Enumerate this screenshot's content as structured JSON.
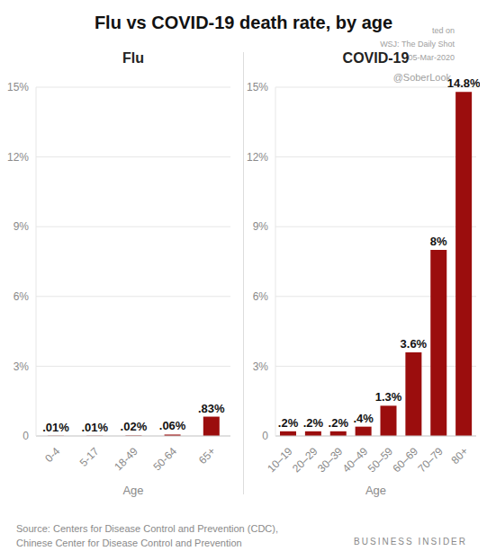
{
  "title": "Flu vs COVID-19 death rate, by age",
  "watermark": [
    "ted on",
    "WSJ: The Daily Shot",
    "05-Mar-2020",
    "@SoberLook"
  ],
  "source": [
    "Source: Centers for Disease Control and Prevention (CDC),",
    "Chinese Center for Disease Control and Prevention"
  ],
  "credit": "BUSINESS INSIDER",
  "chart_data": [
    {
      "type": "bar",
      "title": "Flu",
      "x_label": "Age",
      "categories": [
        "0-4",
        "5-17",
        "18-49",
        "50-64",
        "65+"
      ],
      "values": [
        0.01,
        0.01,
        0.02,
        0.06,
        0.83
      ],
      "value_labels": [
        ".01%",
        ".01%",
        ".02%",
        ".06%",
        ".83%"
      ],
      "color": "#9b0d0d",
      "ylim": [
        0,
        15
      ],
      "yticks": [
        0,
        {
          "value": 3,
          "label": "3%"
        },
        {
          "value": 6,
          "label": "6%"
        },
        {
          "value": 9,
          "label": "9%"
        },
        {
          "value": 12,
          "label": "12%"
        },
        {
          "value": 15,
          "label": "15%"
        }
      ],
      "grid": true,
      "data_labels": true
    },
    {
      "type": "bar",
      "title": "COVID-19",
      "x_label": "Age",
      "categories": [
        "10–19",
        "20–29",
        "30–39",
        "40–49",
        "50–59",
        "60–69",
        "70–79",
        "80+"
      ],
      "values": [
        0.2,
        0.2,
        0.2,
        0.4,
        1.3,
        3.6,
        8,
        14.8
      ],
      "value_labels": [
        ".2%",
        ".2%",
        ".2%",
        ".4%",
        "1.3%",
        "3.6%",
        "8%",
        "14.8%"
      ],
      "color": "#9b0d0d",
      "ylim": [
        0,
        15
      ],
      "yticks": [
        0,
        {
          "value": 3,
          "label": "3%"
        },
        {
          "value": 6,
          "label": "6%"
        },
        {
          "value": 9,
          "label": "9%"
        },
        {
          "value": 12,
          "label": "12%"
        },
        {
          "value": 15,
          "label": "15%"
        }
      ],
      "grid": true,
      "data_labels": true
    }
  ]
}
